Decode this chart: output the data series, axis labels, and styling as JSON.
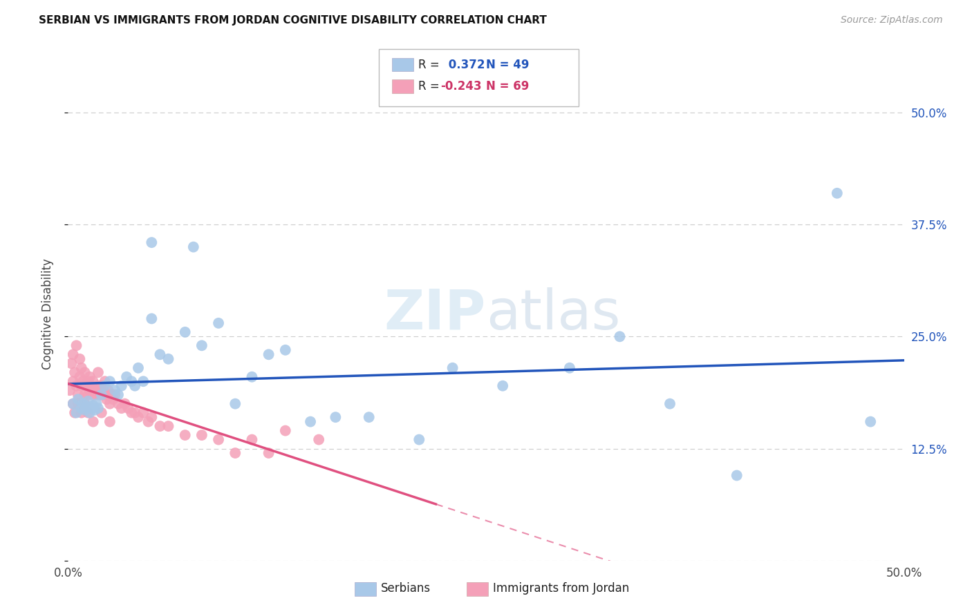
{
  "title": "SERBIAN VS IMMIGRANTS FROM JORDAN COGNITIVE DISABILITY CORRELATION CHART",
  "source": "Source: ZipAtlas.com",
  "ylabel": "Cognitive Disability",
  "xlim": [
    0.0,
    0.5
  ],
  "ylim": [
    0.0,
    0.55
  ],
  "yticks": [
    0.0,
    0.125,
    0.25,
    0.375,
    0.5
  ],
  "ytick_labels": [
    "",
    "12.5%",
    "25.0%",
    "37.5%",
    "50.0%"
  ],
  "xticks": [
    0.0,
    0.1,
    0.2,
    0.3,
    0.4,
    0.5
  ],
  "xtick_labels": [
    "0.0%",
    "",
    "",
    "",
    "",
    "50.0%"
  ],
  "serbian_R": 0.372,
  "serbian_N": 49,
  "jordan_R": -0.243,
  "jordan_N": 69,
  "serbian_color": "#a8c8e8",
  "jordan_color": "#f4a0b8",
  "serbian_line_color": "#2255bb",
  "jordan_line_color": "#e05080",
  "watermark_zip": "ZIP",
  "watermark_atlas": "atlas",
  "legend_serbian_label": "Serbians",
  "legend_jordan_label": "Immigrants from Jordan",
  "serbian_x": [
    0.003,
    0.005,
    0.006,
    0.008,
    0.009,
    0.01,
    0.011,
    0.012,
    0.013,
    0.014,
    0.015,
    0.016,
    0.017,
    0.018,
    0.02,
    0.022,
    0.025,
    0.028,
    0.03,
    0.032,
    0.035,
    0.038,
    0.04,
    0.042,
    0.045,
    0.05,
    0.055,
    0.06,
    0.07,
    0.08,
    0.09,
    0.1,
    0.11,
    0.12,
    0.13,
    0.145,
    0.16,
    0.18,
    0.21,
    0.23,
    0.26,
    0.3,
    0.33,
    0.36,
    0.4,
    0.46,
    0.48,
    0.075,
    0.05
  ],
  "serbian_y": [
    0.175,
    0.165,
    0.18,
    0.17,
    0.175,
    0.168,
    0.172,
    0.178,
    0.165,
    0.17,
    0.173,
    0.168,
    0.175,
    0.17,
    0.185,
    0.195,
    0.2,
    0.19,
    0.185,
    0.195,
    0.205,
    0.2,
    0.195,
    0.215,
    0.2,
    0.27,
    0.23,
    0.225,
    0.255,
    0.24,
    0.265,
    0.175,
    0.205,
    0.23,
    0.235,
    0.155,
    0.16,
    0.16,
    0.135,
    0.215,
    0.195,
    0.215,
    0.25,
    0.175,
    0.095,
    0.41,
    0.155,
    0.35,
    0.355
  ],
  "jordan_x": [
    0.001,
    0.002,
    0.003,
    0.003,
    0.004,
    0.005,
    0.005,
    0.006,
    0.007,
    0.007,
    0.008,
    0.008,
    0.009,
    0.01,
    0.01,
    0.011,
    0.012,
    0.012,
    0.013,
    0.013,
    0.014,
    0.015,
    0.015,
    0.016,
    0.017,
    0.018,
    0.018,
    0.019,
    0.02,
    0.02,
    0.021,
    0.022,
    0.022,
    0.023,
    0.024,
    0.025,
    0.025,
    0.026,
    0.027,
    0.028,
    0.03,
    0.032,
    0.034,
    0.036,
    0.038,
    0.04,
    0.042,
    0.045,
    0.048,
    0.05,
    0.055,
    0.06,
    0.07,
    0.08,
    0.09,
    0.1,
    0.11,
    0.12,
    0.13,
    0.15,
    0.003,
    0.004,
    0.006,
    0.008,
    0.01,
    0.012,
    0.015,
    0.02,
    0.025
  ],
  "jordan_y": [
    0.19,
    0.22,
    0.2,
    0.23,
    0.21,
    0.195,
    0.24,
    0.185,
    0.205,
    0.225,
    0.195,
    0.215,
    0.2,
    0.185,
    0.21,
    0.195,
    0.2,
    0.185,
    0.19,
    0.205,
    0.195,
    0.185,
    0.2,
    0.19,
    0.185,
    0.195,
    0.21,
    0.185,
    0.195,
    0.185,
    0.19,
    0.185,
    0.2,
    0.18,
    0.19,
    0.185,
    0.175,
    0.185,
    0.18,
    0.185,
    0.175,
    0.17,
    0.175,
    0.17,
    0.165,
    0.165,
    0.16,
    0.165,
    0.155,
    0.16,
    0.15,
    0.15,
    0.14,
    0.14,
    0.135,
    0.12,
    0.135,
    0.12,
    0.145,
    0.135,
    0.175,
    0.165,
    0.175,
    0.165,
    0.175,
    0.165,
    0.155,
    0.165,
    0.155
  ]
}
